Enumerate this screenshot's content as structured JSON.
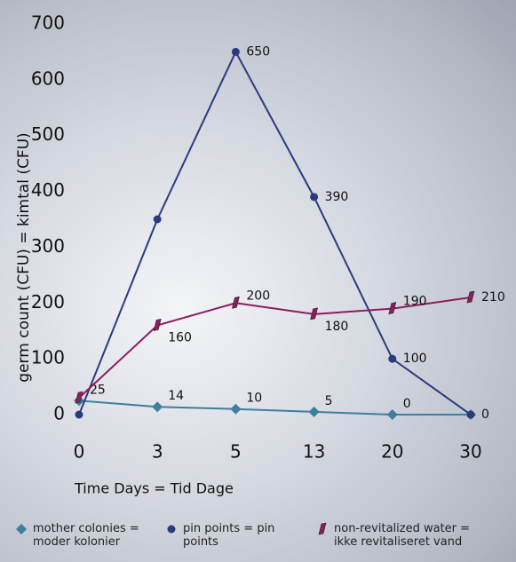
{
  "chart_data": {
    "type": "line",
    "x_label": "Time Days = Tid Dage",
    "y_label": "germ count (CFU) = kimtal (CFU)",
    "categories": [
      "0",
      "3",
      "5",
      "13",
      "20",
      "30"
    ],
    "ylim": [
      0,
      700
    ],
    "yticks": [
      0,
      100,
      200,
      300,
      400,
      500,
      600,
      700
    ],
    "grid": false,
    "legend": "bottom",
    "series": [
      {
        "name": "mother colonies = moder kolonier",
        "color": "#3d7f9c",
        "marker": "diamond",
        "values": [
          25,
          14,
          10,
          5,
          0,
          0
        ],
        "value_labels": [
          "25",
          "14",
          "10",
          "5",
          "0",
          null
        ]
      },
      {
        "name": "pin points = pin points",
        "color": "#2b3a7e",
        "marker": "circle",
        "values": [
          0,
          350,
          650,
          390,
          100,
          0
        ],
        "value_labels": [
          null,
          null,
          "650",
          "390",
          "100",
          "0"
        ]
      },
      {
        "name": "non-revitalized water = ikke revitaliseret vand",
        "color": "#8c1d5e",
        "marker": "leaf",
        "values": [
          30,
          160,
          200,
          180,
          190,
          210
        ],
        "value_labels": [
          null,
          "160",
          "200",
          "180",
          "190",
          "210"
        ]
      }
    ]
  }
}
